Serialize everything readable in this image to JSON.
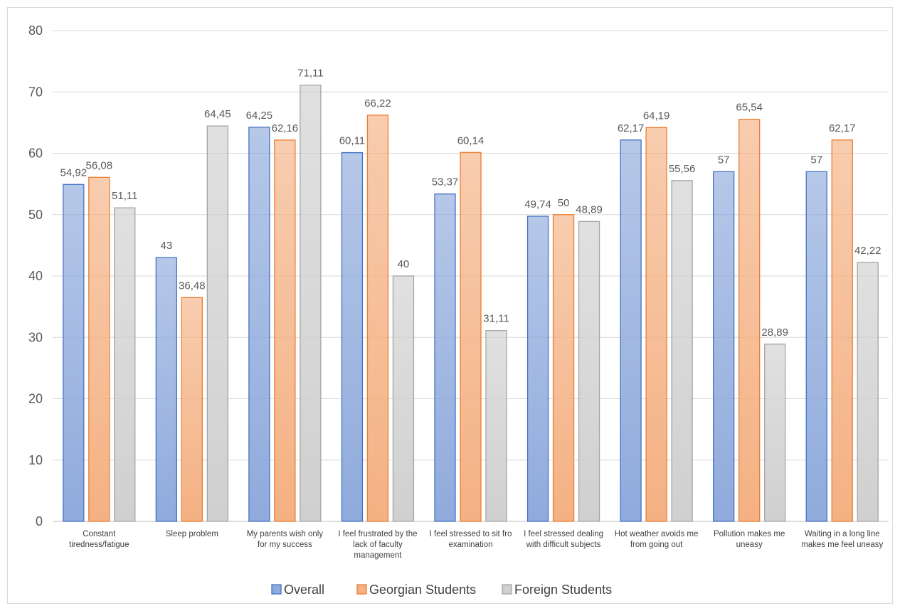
{
  "chart_data": {
    "type": "bar",
    "title": "",
    "xlabel": "",
    "ylabel": "",
    "ylim": [
      0,
      80
    ],
    "yticks": [
      0,
      10,
      20,
      30,
      40,
      50,
      60,
      70,
      80
    ],
    "grid": true,
    "legend_position": "bottom",
    "categories": [
      [
        "Constant",
        "tiredness/fatigue"
      ],
      [
        "Sleep problem"
      ],
      [
        "My parents wish only",
        "for my success"
      ],
      [
        "I feel frustrated by the",
        "lack of faculty",
        "management"
      ],
      [
        "I feel stressed to sit fro",
        "examination"
      ],
      [
        "I feel stressed dealing",
        "with difficult subjects"
      ],
      [
        "Hot weather avoids me",
        "from going out"
      ],
      [
        "Pollution makes me",
        "uneasy"
      ],
      [
        "Waiting in a long line",
        "makes me feel uneasy"
      ]
    ],
    "series": [
      {
        "name": "Overall",
        "color": "#8faadc",
        "stroke": "#4472c4",
        "values": [
          54.92,
          43,
          64.25,
          60.11,
          53.37,
          49.74,
          62.17,
          57,
          57
        ],
        "labels": [
          "54,92",
          "43",
          "64,25",
          "60,11",
          "53,37",
          "49,74",
          "62,17",
          "57",
          "57"
        ]
      },
      {
        "name": "Georgian Students",
        "color": "#f4b183",
        "stroke": "#ed7d31",
        "values": [
          56.08,
          36.48,
          62.16,
          66.22,
          60.14,
          50,
          64.19,
          65.54,
          62.17
        ],
        "labels": [
          "56,08",
          "36,48",
          "62,16",
          "66,22",
          "60,14",
          "50",
          "64,19",
          "65,54",
          "62,17"
        ]
      },
      {
        "name": "Foreign Students",
        "color": "#d0d0d0",
        "stroke": "#a5a5a5",
        "values": [
          51.11,
          64.45,
          71.11,
          40,
          31.11,
          48.89,
          55.56,
          28.89,
          42.22
        ],
        "labels": [
          "51,11",
          "64,45",
          "71,11",
          "40",
          "31,11",
          "48,89",
          "55,56",
          "28,89",
          "42,22"
        ]
      }
    ]
  }
}
